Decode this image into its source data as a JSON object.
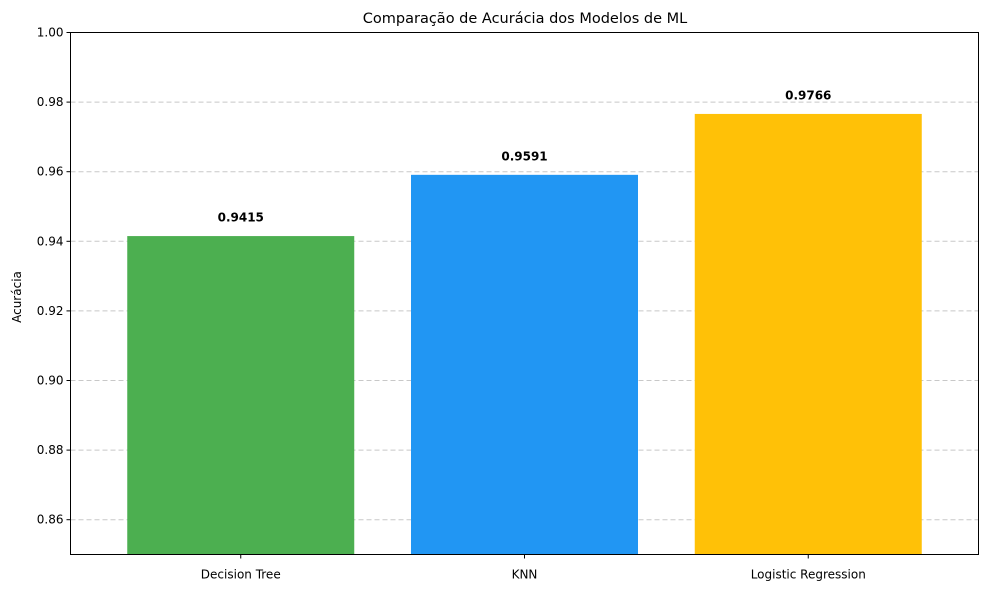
{
  "chart_data": {
    "type": "bar",
    "title": "Comparação de Acurácia dos Modelos de ML",
    "xlabel": "",
    "ylabel": "Acurácia",
    "categories": [
      "Decision Tree",
      "KNN",
      "Logistic Regression"
    ],
    "values": [
      0.9415,
      0.9591,
      0.9766
    ],
    "data_labels": [
      "0.9415",
      "0.9591",
      "0.9766"
    ],
    "colors": [
      "#4caf50",
      "#2196f3",
      "#ffc107"
    ],
    "ylim": [
      0.85,
      1.0
    ],
    "yticks": [
      0.86,
      0.88,
      0.9,
      0.92,
      0.94,
      0.96,
      0.98,
      1.0
    ],
    "ytick_labels": [
      "0.86",
      "0.88",
      "0.90",
      "0.92",
      "0.94",
      "0.96",
      "0.98",
      "1.00"
    ],
    "grid": "y-dashed",
    "legend": "none"
  }
}
